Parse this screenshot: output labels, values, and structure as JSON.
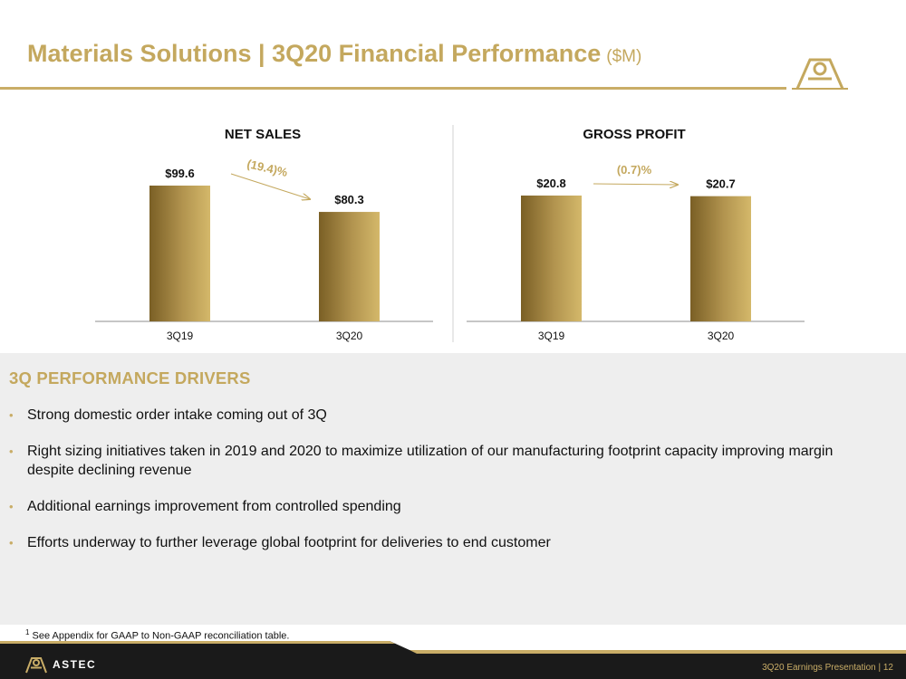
{
  "header": {
    "title": "Materials Solutions | 3Q20 Financial Performance",
    "unit": "($M)"
  },
  "colors": {
    "gold": "#c4a85e",
    "gold_dark": "#7a5f25",
    "gold_light": "#d4b86a",
    "footer_bg": "#1a1a1a",
    "panel_bg": "#eeeeee"
  },
  "chart_data": [
    {
      "type": "bar",
      "title": "NET SALES",
      "categories": [
        "3Q19",
        "3Q20"
      ],
      "values": [
        99.6,
        80.3
      ],
      "value_labels": [
        "$99.6",
        "$80.3"
      ],
      "change_label": "(19.4)%",
      "ylim": [
        0,
        110
      ],
      "grid": false
    },
    {
      "type": "bar",
      "title": "GROSS PROFIT",
      "categories": [
        "3Q19",
        "3Q20"
      ],
      "values": [
        20.8,
        20.7
      ],
      "value_labels": [
        "$20.8",
        "$20.7"
      ],
      "change_label": "(0.7)%",
      "ylim": [
        0,
        22
      ],
      "grid": false
    }
  ],
  "drivers": {
    "heading": "3Q PERFORMANCE DRIVERS",
    "items": [
      "Strong domestic order intake coming out of 3Q",
      "Right sizing initiatives taken in 2019 and 2020 to maximize utilization of our manufacturing footprint capacity improving margin despite declining revenue",
      "Additional earnings improvement from controlled spending",
      "Efforts underway to further leverage global footprint for deliveries to end customer"
    ]
  },
  "footnote": {
    "marker": "1",
    "text": "See Appendix for GAAP to Non-GAAP reconciliation table."
  },
  "footer": {
    "brand": "ASTEC",
    "text": "3Q20 Earnings Presentation |  12"
  }
}
